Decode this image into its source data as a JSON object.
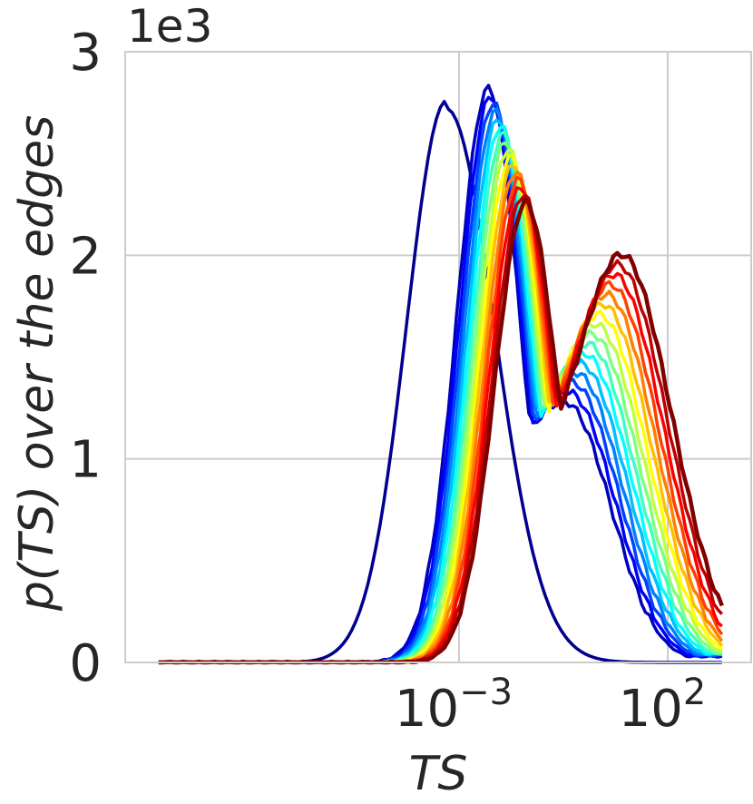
{
  "chart_data": {
    "type": "line",
    "title": "",
    "xlabel": "TS",
    "ylabel": "p(TS) over the edges",
    "x_scale": "log",
    "xlim": [
      1e-11,
      10000
    ],
    "ylim": [
      0,
      3000
    ],
    "y_offset_text": "1e3",
    "x_ticks": [
      {
        "value": 0.001,
        "base": "10",
        "exp": "−3"
      },
      {
        "value": 100,
        "base": "10",
        "exp": "2"
      }
    ],
    "y_ticks": [
      {
        "value": 0,
        "label": "0"
      },
      {
        "value": 1000,
        "label": "1"
      },
      {
        "value": 2000,
        "label": "2"
      },
      {
        "value": 3000,
        "label": "3"
      }
    ],
    "grid": true,
    "colormap": "jet",
    "series_count": 17
  }
}
